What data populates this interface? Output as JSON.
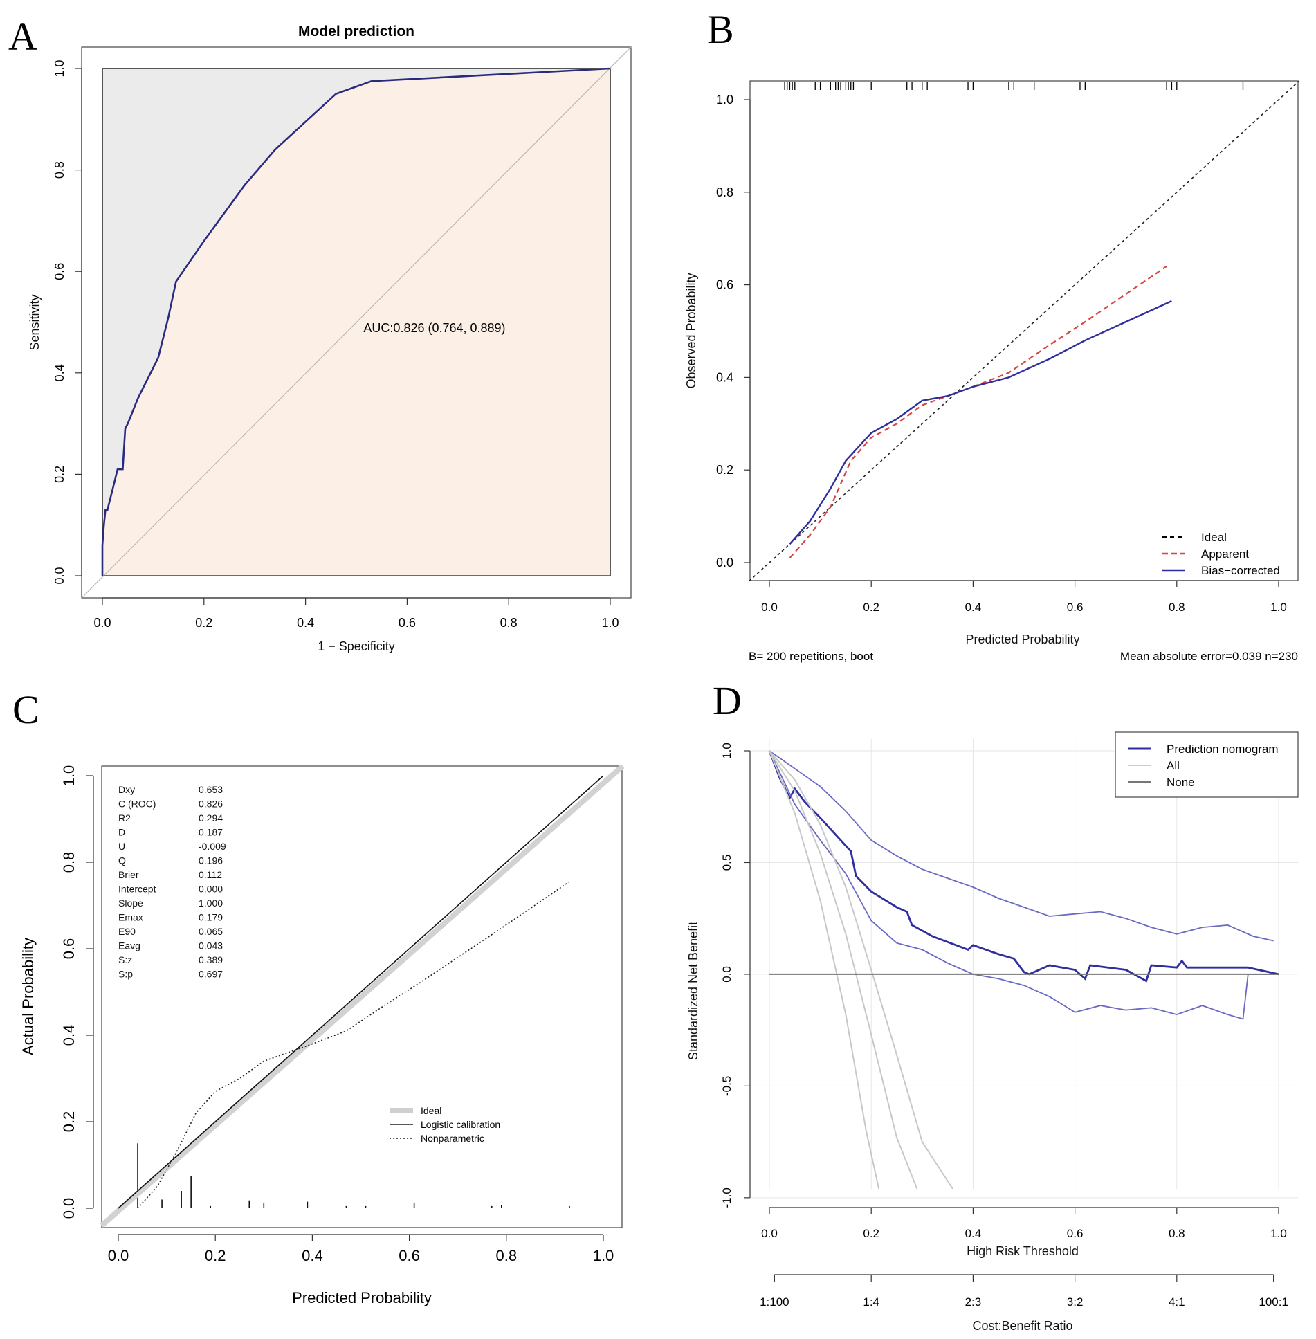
{
  "panels": {
    "A": {
      "letter": "A"
    },
    "B": {
      "letter": "B"
    },
    "C": {
      "letter": "C"
    },
    "D": {
      "letter": "D"
    }
  },
  "chart_data": [
    {
      "panel": "A",
      "type": "line",
      "title": "Model prediction",
      "xlabel": "1 − Specificity",
      "ylabel": "Sensitivity",
      "xlim": [
        0,
        1
      ],
      "ylim": [
        0,
        1
      ],
      "xticks": [
        "0.0",
        "0.2",
        "0.4",
        "0.6",
        "0.8",
        "1.0"
      ],
      "yticks": [
        "0.0",
        "0.2",
        "0.4",
        "0.6",
        "0.8",
        "1.0"
      ],
      "annotation": "AUC:0.826 (0.764, 0.889)",
      "series": [
        {
          "name": "ROC",
          "x": [
            0,
            0,
            0.003,
            0.006,
            0.01,
            0.02,
            0.03,
            0.04,
            0.045,
            0.05,
            0.07,
            0.08,
            0.1,
            0.11,
            0.12,
            0.13,
            0.145,
            0.2,
            0.28,
            0.34,
            0.46,
            0.53,
            1.0
          ],
          "y": [
            0,
            0.06,
            0.1,
            0.13,
            0.13,
            0.17,
            0.21,
            0.21,
            0.29,
            0.3,
            0.35,
            0.37,
            0.41,
            0.43,
            0.47,
            0.51,
            0.58,
            0.66,
            0.77,
            0.84,
            0.95,
            0.975,
            1.0
          ]
        }
      ]
    },
    {
      "panel": "B",
      "type": "line",
      "title": "",
      "xlabel": "Predicted Probability",
      "ylabel": "Observed Probability",
      "xlim": [
        0,
        1
      ],
      "ylim": [
        0,
        1
      ],
      "xticks": [
        "0.0",
        "0.2",
        "0.4",
        "0.6",
        "0.8",
        "1.0"
      ],
      "yticks": [
        "0.0",
        "0.2",
        "0.4",
        "0.6",
        "0.8",
        "1.0"
      ],
      "footnote_left": "B= 200 repetitions, boot",
      "footnote_right": "Mean absolute error=0.039 n=230",
      "legend": [
        "Ideal",
        "Apparent",
        "Bias−corrected"
      ],
      "rug": [
        0.03,
        0.035,
        0.04,
        0.045,
        0.05,
        0.09,
        0.1,
        0.12,
        0.13,
        0.135,
        0.14,
        0.15,
        0.155,
        0.16,
        0.165,
        0.2,
        0.27,
        0.28,
        0.3,
        0.31,
        0.39,
        0.4,
        0.47,
        0.48,
        0.52,
        0.61,
        0.62,
        0.78,
        0.79,
        0.8,
        0.93
      ],
      "series": [
        {
          "name": "Apparent",
          "x": [
            0.04,
            0.08,
            0.12,
            0.16,
            0.2,
            0.25,
            0.3,
            0.35,
            0.4,
            0.47,
            0.55,
            0.62,
            0.7,
            0.78
          ],
          "y": [
            0.01,
            0.06,
            0.12,
            0.22,
            0.27,
            0.3,
            0.34,
            0.36,
            0.38,
            0.41,
            0.47,
            0.52,
            0.58,
            0.64
          ]
        },
        {
          "name": "Bias−corrected",
          "x": [
            0.04,
            0.08,
            0.12,
            0.15,
            0.2,
            0.25,
            0.3,
            0.35,
            0.4,
            0.47,
            0.55,
            0.62,
            0.7,
            0.79
          ],
          "y": [
            0.04,
            0.09,
            0.16,
            0.22,
            0.28,
            0.31,
            0.35,
            0.36,
            0.38,
            0.4,
            0.44,
            0.48,
            0.52,
            0.565
          ]
        }
      ]
    },
    {
      "panel": "C",
      "type": "line",
      "title": "",
      "xlabel": "Predicted Probability",
      "ylabel": "Actual Probability",
      "xlim": [
        0,
        1
      ],
      "ylim": [
        0,
        1
      ],
      "xticks": [
        "0.0",
        "0.2",
        "0.4",
        "0.6",
        "0.8",
        "1.0"
      ],
      "yticks": [
        "0.0",
        "0.2",
        "0.4",
        "0.6",
        "0.8",
        "1.0"
      ],
      "legend": [
        "Ideal",
        "Logistic calibration",
        "Nonparametric"
      ],
      "stats": [
        {
          "label": "Dxy",
          "value": "0.653"
        },
        {
          "label": "C (ROC)",
          "value": "0.826"
        },
        {
          "label": "R2",
          "value": "0.294"
        },
        {
          "label": "D",
          "value": "0.187"
        },
        {
          "label": "U",
          "value": "-0.009"
        },
        {
          "label": "Q",
          "value": "0.196"
        },
        {
          "label": "Brier",
          "value": "0.112"
        },
        {
          "label": "Intercept",
          "value": "0.000"
        },
        {
          "label": "Slope",
          "value": "1.000"
        },
        {
          "label": "Emax",
          "value": "0.179"
        },
        {
          "label": "E90",
          "value": "0.065"
        },
        {
          "label": "Eavg",
          "value": "0.043"
        },
        {
          "label": "S:z",
          "value": "0.389"
        },
        {
          "label": "S:p",
          "value": "0.697"
        }
      ],
      "spikes": [
        {
          "x": 0.04,
          "h": 0.15
        },
        {
          "x": 0.09,
          "h": 0.02
        },
        {
          "x": 0.13,
          "h": 0.04
        },
        {
          "x": 0.15,
          "h": 0.075
        },
        {
          "x": 0.19,
          "h": 0.005
        },
        {
          "x": 0.27,
          "h": 0.018
        },
        {
          "x": 0.3,
          "h": 0.012
        },
        {
          "x": 0.39,
          "h": 0.015
        },
        {
          "x": 0.47,
          "h": 0.005
        },
        {
          "x": 0.51,
          "h": 0.005
        },
        {
          "x": 0.61,
          "h": 0.012
        },
        {
          "x": 0.77,
          "h": 0.005
        },
        {
          "x": 0.79,
          "h": 0.007
        },
        {
          "x": 0.93,
          "h": 0.005
        }
      ],
      "series": [
        {
          "name": "Ideal",
          "x": [
            -0.05,
            1.05
          ],
          "y": [
            -0.05,
            1.05
          ]
        },
        {
          "name": "Logistic calibration",
          "x": [
            0,
            1
          ],
          "y": [
            0,
            1
          ]
        },
        {
          "name": "Nonparametric",
          "x": [
            0.04,
            0.08,
            0.12,
            0.16,
            0.2,
            0.25,
            0.3,
            0.35,
            0.4,
            0.47,
            0.55,
            0.62,
            0.7,
            0.78,
            0.93
          ],
          "y": [
            0.0,
            0.05,
            0.13,
            0.22,
            0.27,
            0.3,
            0.34,
            0.36,
            0.38,
            0.41,
            0.47,
            0.52,
            0.58,
            0.64,
            0.755
          ]
        }
      ]
    },
    {
      "panel": "D",
      "type": "line",
      "title": "",
      "xlabel": "High Risk Threshold",
      "ylabel": "Standardized Net Benefit",
      "xlabel2": "Cost:Benefit Ratio",
      "xlim": [
        0,
        1
      ],
      "ylim": [
        -1.05,
        1.0
      ],
      "xticks": [
        "0.0",
        "0.2",
        "0.4",
        "0.6",
        "0.8",
        "1.0"
      ],
      "yticks": [
        "-1.0",
        "-0.5",
        "0.0",
        "0.5",
        "1.0"
      ],
      "cost_benefit_ticks": [
        {
          "at": 0.01,
          "label": "1:100"
        },
        {
          "at": 0.2,
          "label": "1:4"
        },
        {
          "at": 0.4,
          "label": "2:3"
        },
        {
          "at": 0.6,
          "label": "3:2"
        },
        {
          "at": 0.8,
          "label": "4:1"
        },
        {
          "at": 0.99,
          "label": "100:1"
        }
      ],
      "legend": [
        "Prediction nomogram",
        "All",
        "None"
      ],
      "series": [
        {
          "name": "Prediction nomogram",
          "x": [
            0,
            0.02,
            0.04,
            0.05,
            0.07,
            0.1,
            0.14,
            0.16,
            0.17,
            0.2,
            0.25,
            0.27,
            0.28,
            0.32,
            0.39,
            0.4,
            0.45,
            0.48,
            0.5,
            0.51,
            0.55,
            0.6,
            0.62,
            0.63,
            0.7,
            0.74,
            0.75,
            0.8,
            0.81,
            0.82,
            0.9,
            0.94,
            1.0
          ],
          "y": [
            1.0,
            0.88,
            0.79,
            0.83,
            0.77,
            0.7,
            0.6,
            0.55,
            0.44,
            0.37,
            0.3,
            0.28,
            0.22,
            0.17,
            0.11,
            0.13,
            0.09,
            0.07,
            0.01,
            0.0,
            0.04,
            0.02,
            -0.02,
            0.04,
            0.02,
            -0.03,
            0.04,
            0.03,
            0.06,
            0.03,
            0.03,
            0.03,
            0.0
          ]
        },
        {
          "name": "CI upper",
          "x": [
            0,
            0.05,
            0.1,
            0.15,
            0.2,
            0.25,
            0.3,
            0.35,
            0.4,
            0.45,
            0.5,
            0.55,
            0.6,
            0.65,
            0.7,
            0.75,
            0.8,
            0.85,
            0.9,
            0.95,
            0.99
          ],
          "y": [
            1.0,
            0.92,
            0.84,
            0.73,
            0.6,
            0.53,
            0.47,
            0.43,
            0.39,
            0.34,
            0.3,
            0.26,
            0.27,
            0.28,
            0.25,
            0.21,
            0.18,
            0.21,
            0.22,
            0.17,
            0.15
          ]
        },
        {
          "name": "CI lower",
          "x": [
            0,
            0.05,
            0.1,
            0.15,
            0.2,
            0.25,
            0.3,
            0.35,
            0.4,
            0.45,
            0.5,
            0.55,
            0.6,
            0.65,
            0.7,
            0.75,
            0.8,
            0.85,
            0.9,
            0.93,
            0.94,
            1.0
          ],
          "y": [
            1.0,
            0.76,
            0.6,
            0.45,
            0.24,
            0.14,
            0.11,
            0.05,
            0.0,
            -0.02,
            -0.05,
            -0.1,
            -0.17,
            -0.14,
            -0.16,
            -0.15,
            -0.18,
            -0.14,
            -0.18,
            -0.2,
            0.0,
            0.0
          ]
        },
        {
          "name": "All",
          "x": [
            0,
            0.05,
            0.1,
            0.15,
            0.2,
            0.25,
            0.3,
            0.36
          ],
          "y": [
            1.0,
            0.87,
            0.67,
            0.39,
            0.02,
            -0.36,
            -0.75,
            -1.07
          ]
        },
        {
          "name": "All (upper)",
          "x": [
            0,
            0.05,
            0.1,
            0.15,
            0.2,
            0.25,
            0.29
          ],
          "y": [
            1.0,
            0.82,
            0.54,
            0.18,
            -0.27,
            -0.73,
            -1.07
          ]
        },
        {
          "name": "All (lower)",
          "x": [
            0,
            0.05,
            0.1,
            0.15,
            0.19,
            0.215
          ],
          "y": [
            1.0,
            0.72,
            0.33,
            -0.18,
            -0.7,
            -1.07
          ]
        },
        {
          "name": "None",
          "x": [
            0,
            1
          ],
          "y": [
            0,
            0
          ]
        }
      ]
    }
  ]
}
